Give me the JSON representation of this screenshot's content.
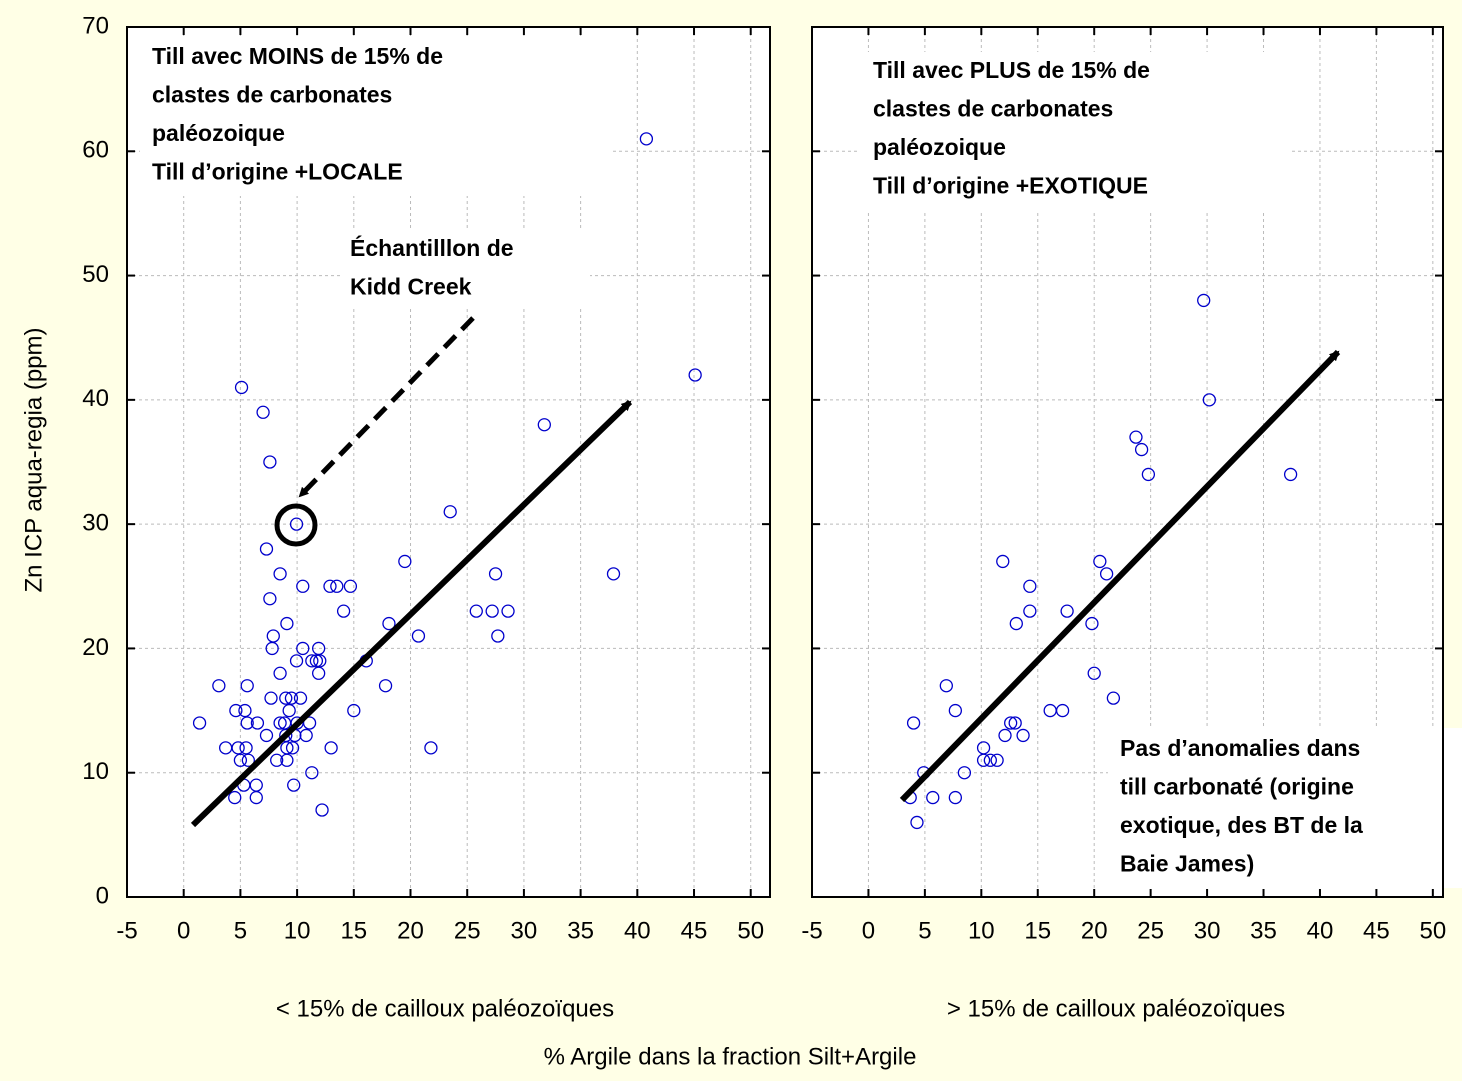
{
  "y_label": "Zn ICP aqua-regia (ppm)",
  "x_label": "% Argile dans la fraction Silt+Argile",
  "chart_data": [
    {
      "type": "scatter",
      "subtitle": "< 15% de cailloux paléozoïques",
      "annotations": [
        {
          "lines": [
            "Till avec MOINS de 15% de",
            "clastes de carbonates",
            "paléozoique",
            "Till d’origine +LOCALE"
          ]
        },
        {
          "lines": [
            "Échantilllon de",
            "Kidd Creek"
          ]
        }
      ],
      "color": "#0000cc",
      "grid": true,
      "xlim": [
        -5,
        51.7
      ],
      "ylim": [
        0,
        70
      ],
      "xticks": [
        -5,
        0,
        5,
        10,
        15,
        20,
        25,
        30,
        35,
        40,
        45,
        50
      ],
      "yticks": [
        0,
        10,
        20,
        30,
        40,
        50,
        60,
        70
      ],
      "x": [
        1.4,
        3.1,
        3.7,
        4.6,
        4.5,
        5.1,
        4.8,
        5.4,
        5.0,
        5.5,
        5.3,
        5.6,
        5.6,
        5.7,
        6.5,
        6.4,
        6.4,
        7.0,
        7.3,
        7.3,
        7.6,
        7.6,
        7.7,
        7.9,
        7.8,
        8.2,
        8.5,
        8.5,
        8.5,
        9.1,
        8.9,
        9.0,
        9.1,
        9.1,
        9.0,
        9.3,
        9.5,
        9.6,
        9.7,
        9.8,
        9.95,
        9.95,
        10.0,
        10.3,
        10.5,
        10.5,
        10.8,
        11.1,
        11.3,
        11.3,
        11.7,
        11.9,
        11.9,
        12.2,
        12.0,
        12.9,
        13.5,
        13.0,
        14.1,
        14.7,
        15.0,
        16.1,
        18.1,
        17.8,
        19.5,
        20.7,
        21.8,
        23.5,
        25.8,
        27.2,
        27.5,
        27.7,
        28.6,
        31.8,
        37.9,
        40.8,
        45.1
      ],
      "y": [
        14,
        17,
        12,
        15,
        8,
        41,
        12,
        15,
        11,
        12,
        9,
        17,
        14,
        11,
        14,
        9,
        8,
        39,
        13,
        28,
        35,
        24,
        16,
        21,
        20,
        11,
        26,
        18,
        14,
        22,
        14,
        13,
        11,
        12,
        16,
        15,
        16,
        12,
        9,
        13,
        30,
        19,
        14,
        16,
        25,
        20,
        13,
        14,
        19,
        10,
        19,
        20,
        18,
        7,
        19,
        25,
        25,
        12,
        23,
        25,
        15,
        19,
        22,
        17,
        27,
        21,
        12,
        31,
        23,
        23,
        26,
        21,
        23,
        38,
        26,
        61,
        42
      ]
    },
    {
      "type": "scatter",
      "subtitle": "> 15% de cailloux paléozoïques",
      "annotations": [
        {
          "lines": [
            "Till avec PLUS de 15% de",
            "clastes de carbonates",
            "paléozoique",
            "Till d’origine +EXOTIQUE"
          ]
        },
        {
          "lines": [
            "Pas d’anomalies dans",
            "till carbonaté (origine",
            "exotique, des BT de la",
            "Baie James)"
          ]
        }
      ],
      "color": "#0000cc",
      "grid": true,
      "xlim": [
        -5,
        50.9
      ],
      "ylim": [
        0,
        70
      ],
      "xticks": [
        -5,
        0,
        5,
        10,
        15,
        20,
        25,
        30,
        35,
        40,
        45,
        50
      ],
      "yticks": [
        0,
        10,
        20,
        30,
        40,
        50,
        60,
        70
      ],
      "x": [
        3.7,
        4.0,
        4.3,
        4.9,
        5.7,
        6.9,
        7.7,
        7.7,
        8.5,
        10.2,
        10.2,
        10.8,
        11.4,
        11.9,
        12.1,
        12.6,
        13.0,
        13.1,
        13.7,
        14.3,
        14.3,
        16.1,
        17.2,
        17.6,
        19.8,
        20.0,
        20.5,
        21.1,
        21.7,
        23.7,
        24.2,
        24.8,
        29.7,
        30.2,
        37.4
      ],
      "y": [
        8,
        14,
        6,
        10,
        8,
        17,
        15,
        8,
        10,
        12,
        11,
        11,
        11,
        27,
        13,
        14,
        14,
        22,
        13,
        25,
        23,
        15,
        15,
        23,
        22,
        18,
        27,
        26,
        16,
        37,
        36,
        34,
        48,
        40,
        34
      ]
    }
  ]
}
